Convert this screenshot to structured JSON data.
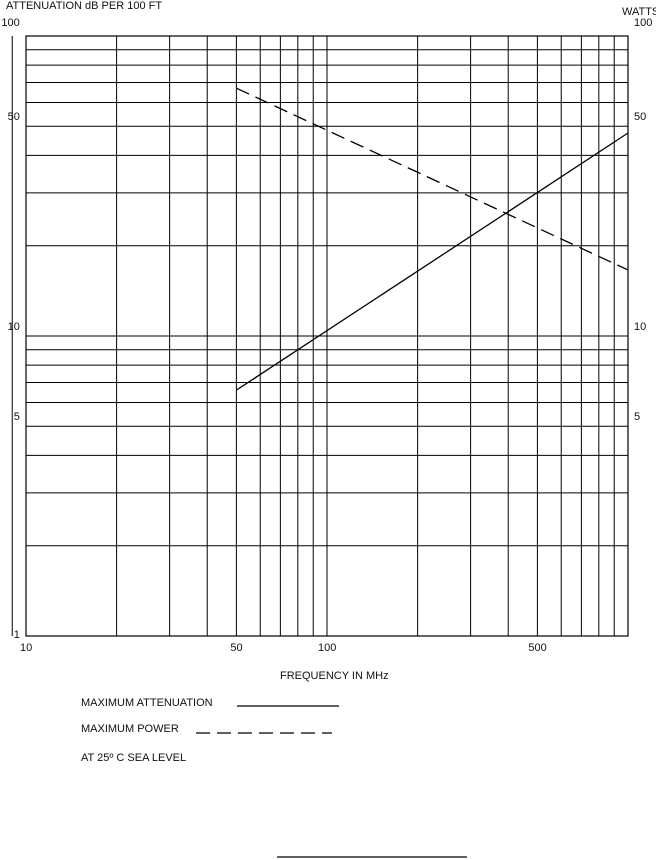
{
  "chart_data": {
    "type": "line",
    "ylabel_left": "ATTENUATION dB PER 100 FT",
    "ylabel_right": "WATTS",
    "xlabel": "FREQUENCY  IN  MHz",
    "x_scale": "log",
    "y_scale": "log",
    "xlim": [
      10,
      1000
    ],
    "ylim": [
      1,
      100
    ],
    "grid": true,
    "x_tick_labels": [
      "10",
      "50",
      "100",
      "500"
    ],
    "x_ticks": [
      10,
      50,
      100,
      500
    ],
    "y_tick_labels_left": [
      "100",
      "50",
      "10",
      "5",
      "1"
    ],
    "y_ticks_left": [
      100,
      50,
      10,
      5,
      1
    ],
    "y_tick_labels_right": [
      "100",
      "50",
      "10",
      "5"
    ],
    "y_ticks_right": [
      100,
      50,
      10,
      5
    ],
    "series": [
      {
        "name": "MAXIMUM ATTENUATION",
        "style": "solid",
        "x": [
          50,
          1000
        ],
        "y": [
          6.6,
          47.5
        ]
      },
      {
        "name": "MAXIMUM POWER",
        "style": "dashed",
        "x": [
          50,
          1000
        ],
        "y": [
          67,
          16.6
        ]
      }
    ],
    "legend_placement": "bottom-left",
    "note": "AT 25º C  SEA LEVEL"
  }
}
